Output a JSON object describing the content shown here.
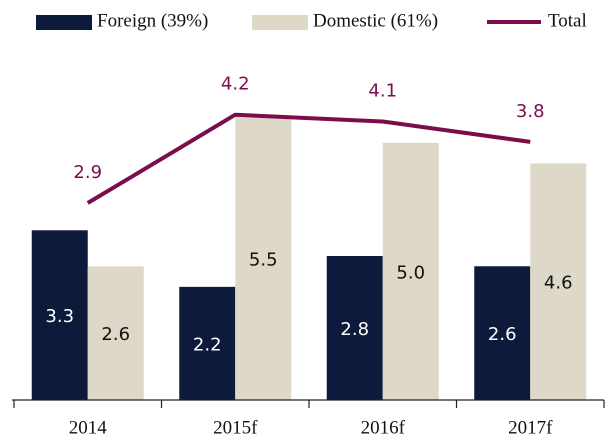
{
  "chart_data": {
    "type": "bar",
    "categories": [
      "2014",
      "2015f",
      "2016f",
      "2017f"
    ],
    "series": [
      {
        "name": "Foreign (39%)",
        "color": "#0e1a3c",
        "values": [
          3.3,
          2.2,
          2.8,
          2.6
        ],
        "value_labels": [
          "3.3",
          "2.2",
          "2.8",
          "2.6"
        ]
      },
      {
        "name": "Domestic (61%)",
        "color": "#ddd8c7",
        "values": [
          2.6,
          5.5,
          5.0,
          4.6
        ],
        "value_labels": [
          "2.6",
          "5.5",
          "5.0",
          "4.6"
        ]
      },
      {
        "name": "Total",
        "type": "line",
        "axis": "y2",
        "color": "#7b0d4b",
        "values": [
          2.9,
          4.2,
          4.1,
          3.8
        ],
        "value_labels": [
          "2.9",
          "4.2",
          "4.1",
          "3.8"
        ]
      }
    ],
    "ylim": [
      0,
      7
    ],
    "y2lim": [
      0,
      5.3
    ],
    "legend": "top"
  }
}
